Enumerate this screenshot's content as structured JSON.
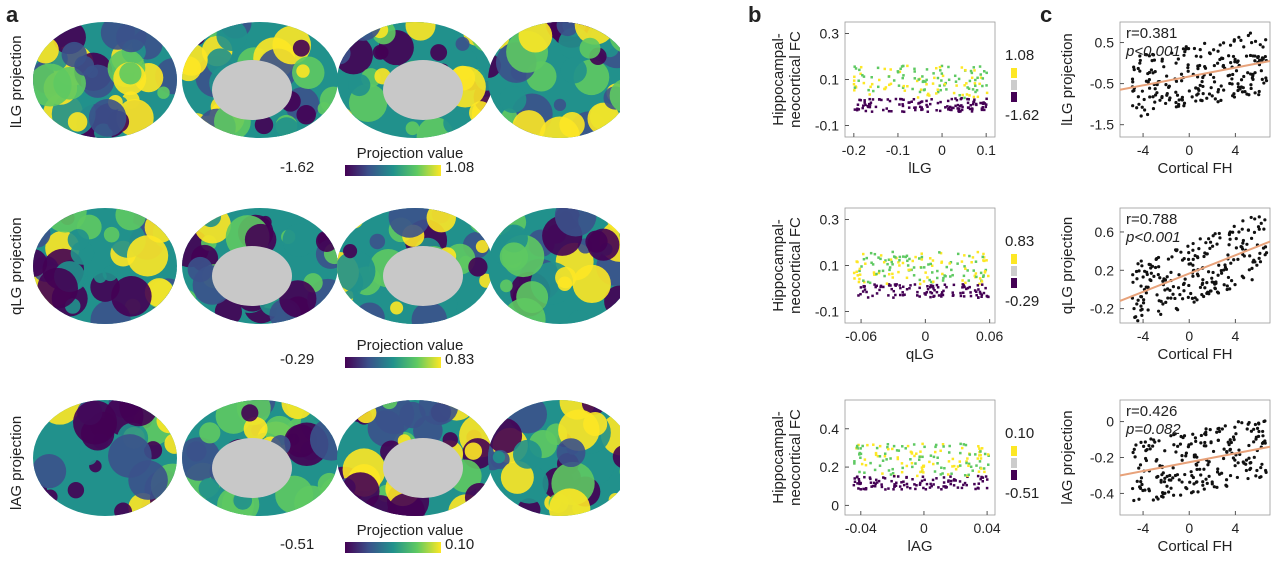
{
  "panels": {
    "a": "a",
    "b": "b",
    "c": "c"
  },
  "colors": {
    "viridis": [
      "#440154",
      "#3b528b",
      "#21918c",
      "#5ec962",
      "#fde725"
    ],
    "gray_medial": "#c8c8c8",
    "fit_line": "#e8a27a",
    "points": "#111111"
  },
  "rows": [
    {
      "row_label": "lLG projection",
      "colorbar": {
        "title": "Projection value",
        "min": "-1.62",
        "max": "1.08"
      },
      "scatter_b": {
        "ylabel_1": "Hippocampal-",
        "ylabel_2": "neocortical FC",
        "xlabel": "lLG",
        "xticks": [
          "-0.2",
          "-0.1",
          "0",
          "0.1"
        ],
        "yticks": [
          "0.3",
          "0.1",
          "-0.1"
        ],
        "legend_max": "1.08",
        "legend_min": "-1.62"
      },
      "scatter_c": {
        "ylabel": "lLG projection",
        "xlabel": "Cortical FH",
        "xticks": [
          "-4",
          "0",
          "4"
        ],
        "yticks": [
          "0.5",
          "-0.5",
          "-1.5"
        ],
        "r": "r=0.381",
        "p": "p<0.001"
      }
    },
    {
      "row_label": "qLG projection",
      "colorbar": {
        "title": "Projection value",
        "min": "-0.29",
        "max": "0.83"
      },
      "scatter_b": {
        "ylabel_1": "Hippocampal-",
        "ylabel_2": "neocortical FC",
        "xlabel": "qLG",
        "xticks": [
          "-0.06",
          "0",
          "0.06"
        ],
        "yticks": [
          "0.3",
          "0.1",
          "-0.1"
        ],
        "legend_max": "0.83",
        "legend_min": "-0.29"
      },
      "scatter_c": {
        "ylabel": "qLG projection",
        "xlabel": "Cortical FH",
        "xticks": [
          "-4",
          "0",
          "4"
        ],
        "yticks": [
          "0.6",
          "0.2",
          "-0.2"
        ],
        "r": "r=0.788",
        "p": "p<0.001"
      }
    },
    {
      "row_label": "lAG projection",
      "colorbar": {
        "title": "Projection value",
        "min": "-0.51",
        "max": "0.10"
      },
      "scatter_b": {
        "ylabel_1": "Hippocampal-",
        "ylabel_2": "neocortical FC",
        "xlabel": "lAG",
        "xticks": [
          "-0.04",
          "0",
          "0.04"
        ],
        "yticks": [
          "0.4",
          "0.2",
          "0"
        ],
        "legend_max": "0.10",
        "legend_min": "-0.51"
      },
      "scatter_c": {
        "ylabel": "lAG projection",
        "xlabel": "Cortical FH",
        "xticks": [
          "-4",
          "0",
          "4"
        ],
        "yticks": [
          "0",
          "-0.2",
          "-0.4"
        ],
        "r": "r=0.426",
        "p": "p=0.082"
      }
    }
  ]
}
